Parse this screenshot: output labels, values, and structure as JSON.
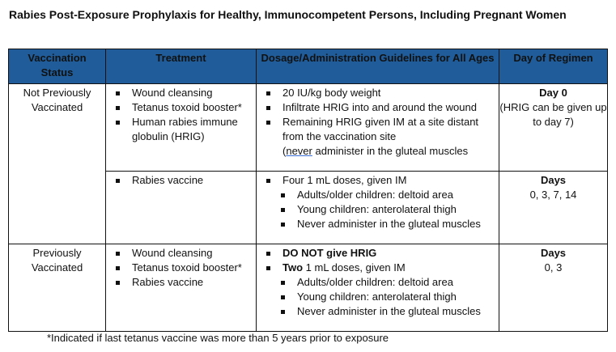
{
  "title": "Rabies Post-Exposure Prophylaxis for Healthy, Immunocompetent Persons, Including Pregnant Women",
  "header_color": "#1f5c99",
  "columns": [
    "Vaccination Status",
    "Treatment",
    "Dosage/Administration Guidelines for All Ages",
    "Day of Regimen"
  ],
  "rows": [
    {
      "status": "Not Previously Vaccinated",
      "treatment": [
        "Wound cleansing",
        "Tetanus toxoid booster*",
        "Human rabies immune globulin (HRIG)"
      ],
      "dosage": [
        "20 IU/kg body weight",
        "Infiltrate HRIG into and around the wound",
        "Remaining HRIG given IM at a site distant from the vaccination site"
      ],
      "dosage_note_open": "(",
      "dosage_note_word": "never",
      "dosage_note_rest": " administer in the gluteal muscles",
      "day_bold": "Day 0",
      "day_text": "(HRIG can be given up to day 7)"
    },
    {
      "treatment": [
        "Rabies vaccine"
      ],
      "dosage": [
        "Four 1 mL doses, given IM"
      ],
      "dosage_sub": [
        "Adults/older children: deltoid area",
        "Young children: anterolateral thigh",
        "Never administer in the gluteal muscles"
      ],
      "day_bold": "Days",
      "day_text": "0, 3, 7, 14"
    },
    {
      "status": "Previously Vaccinated",
      "treatment": [
        "Wound cleansing",
        "Tetanus toxoid booster*",
        "Rabies vaccine"
      ],
      "dosage_bold": "DO NOT give HRIG",
      "dosage2_bold": "Two",
      "dosage2_rest": " 1 mL doses, given IM",
      "dosage_sub": [
        "Adults/older children: deltoid area",
        "Young children: anterolateral thigh",
        " Never administer in the gluteal muscles"
      ],
      "day_bold": "Days",
      "day_text": "0, 3"
    }
  ],
  "footnote": "*Indicated if last tetanus vaccine was more than 5 years prior to exposure"
}
